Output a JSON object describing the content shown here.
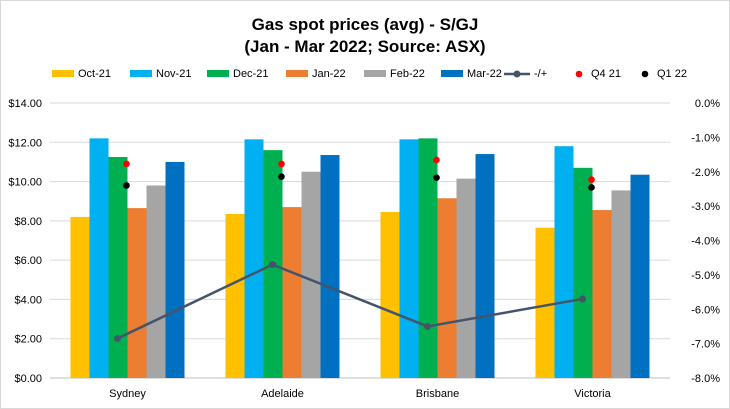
{
  "chart_data": {
    "type": "bar",
    "title": "Gas spot prices (avg) - S/GJ",
    "subtitle": "(Jan - Mar 2022; Source: ASX)",
    "categories": [
      "Sydney",
      "Adelaide",
      "Brisbane",
      "Victoria"
    ],
    "series": [
      {
        "name": "Oct-21",
        "color": "#FFC000",
        "values": [
          8.2,
          8.35,
          8.45,
          7.65
        ]
      },
      {
        "name": "Nov-21",
        "color": "#00B0F0",
        "values": [
          12.2,
          12.15,
          12.15,
          11.8
        ]
      },
      {
        "name": "Dec-21",
        "color": "#00B050",
        "values": [
          11.25,
          11.6,
          12.2,
          10.7
        ]
      },
      {
        "name": "Jan-22",
        "color": "#ED7D31",
        "values": [
          8.65,
          8.7,
          9.15,
          8.55
        ]
      },
      {
        "name": "Feb-22",
        "color": "#A5A5A5",
        "values": [
          9.8,
          10.5,
          10.15,
          9.55
        ]
      },
      {
        "name": "Mar-22",
        "color": "#0070C0",
        "values": [
          11.0,
          11.35,
          11.4,
          10.35
        ]
      }
    ],
    "line_series": {
      "name": "-/+",
      "color": "#44546A",
      "axis": "right",
      "values": [
        -6.85,
        -4.7,
        -6.5,
        -5.7
      ]
    },
    "point_series": [
      {
        "name": "Q4 21",
        "color": "#FF0000",
        "values": [
          10.9,
          10.9,
          11.1,
          10.1
        ]
      },
      {
        "name": "Q1 22",
        "color": "#000000",
        "values": [
          9.8,
          10.25,
          10.2,
          9.7
        ]
      }
    ],
    "left_axis": {
      "min": 0,
      "max": 14,
      "step": 2,
      "labels": [
        "$0.00",
        "$2.00",
        "$4.00",
        "$6.00",
        "$8.00",
        "$10.00",
        "$12.00",
        "$14.00"
      ]
    },
    "right_axis": {
      "min": -8,
      "max": 0,
      "step": 1,
      "labels": [
        "-8.0%",
        "-7.0%",
        "-6.0%",
        "-5.0%",
        "-4.0%",
        "-3.0%",
        "-2.0%",
        "-1.0%",
        "0.0%"
      ]
    },
    "grid": true,
    "legend_position": "top"
  }
}
